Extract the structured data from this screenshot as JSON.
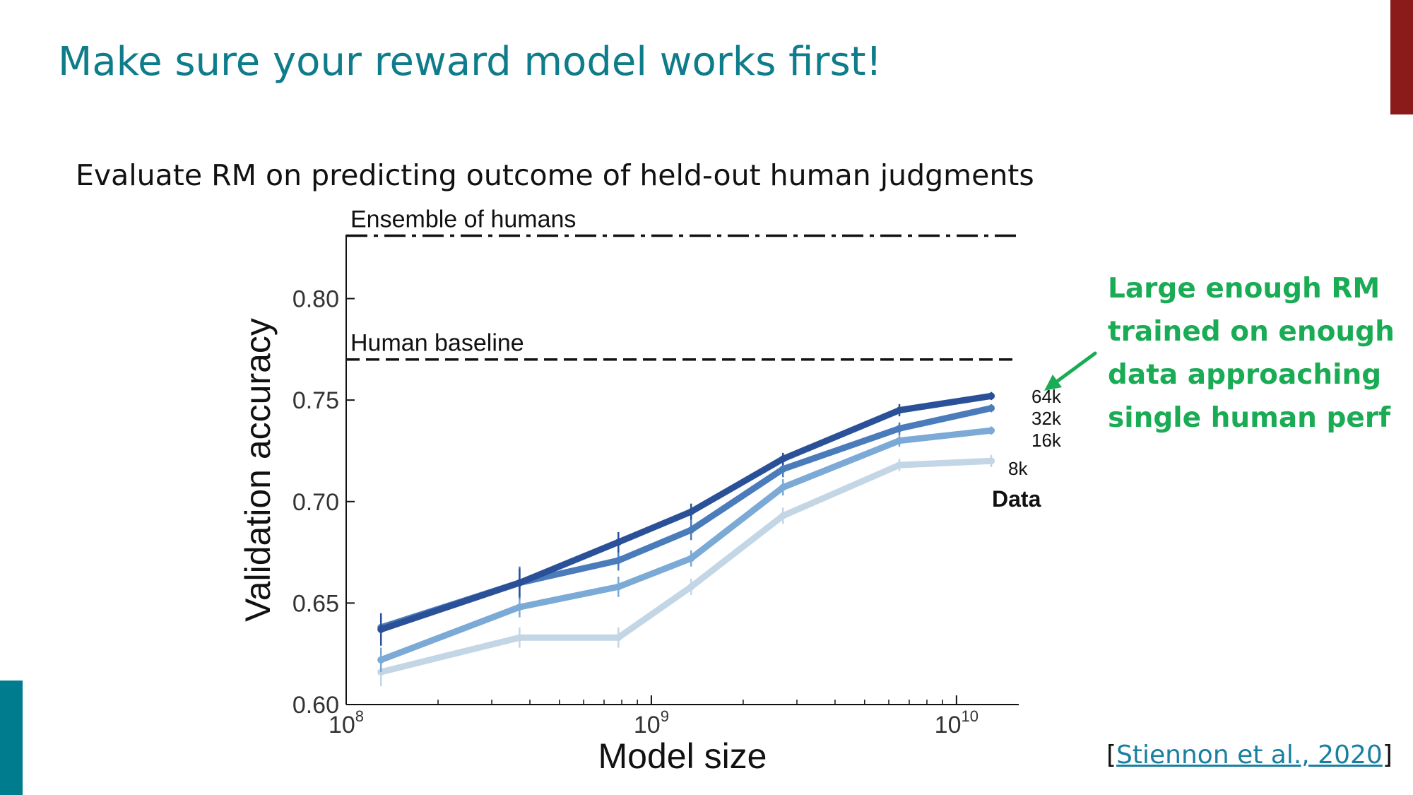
{
  "slide": {
    "title": "Make sure your reward model works first!",
    "subtitle": "Evaluate RM on predicting outcome of held-out human judgments",
    "callout_lines": [
      "Large enough RM",
      "trained on enough",
      "data approaching",
      "single human perf"
    ],
    "citation": {
      "open_bracket": "[",
      "link_text": "Stiennon et al., 2020",
      "close_bracket": "]"
    }
  },
  "colors": {
    "title": "#0e7c8a",
    "callout": "#1aab55",
    "accent_top": "#8b1a1a",
    "accent_bottom": "#007c8f"
  },
  "icons": {
    "callout_arrow": "arrow-icon"
  },
  "chart_data": {
    "type": "line",
    "xlabel": "Model size",
    "ylabel": "Validation accuracy",
    "x_scale": "log",
    "xlim": [
      100000000.0,
      16000000000.0
    ],
    "ylim": [
      0.6,
      0.835
    ],
    "x_ticks": [
      {
        "value": 100000000.0,
        "base": "10",
        "exp": "8"
      },
      {
        "value": 1000000000.0,
        "base": "10",
        "exp": "9"
      },
      {
        "value": 10000000000.0,
        "base": "10",
        "exp": "10"
      }
    ],
    "y_ticks": [
      {
        "value": 0.6,
        "label": "0.60"
      },
      {
        "value": 0.65,
        "label": "0.65"
      },
      {
        "value": 0.7,
        "label": "0.70"
      },
      {
        "value": 0.75,
        "label": "0.75"
      },
      {
        "value": 0.8,
        "label": "0.80"
      }
    ],
    "legend_title": "Data",
    "x": [
      130000000.0,
      370000000.0,
      780000000.0,
      1350000000.0,
      2700000000.0,
      6500000000.0,
      13000000000.0
    ],
    "series": [
      {
        "name": "64k",
        "color": "#2a5198",
        "values": [
          0.637,
          0.66,
          0.68,
          0.695,
          0.721,
          0.745,
          0.752
        ],
        "errors": [
          0.008,
          0.007,
          0.005,
          0.004,
          0.003,
          0.003,
          0.002
        ]
      },
      {
        "name": "32k",
        "color": "#4a7cbc",
        "values": [
          0.638,
          0.66,
          0.671,
          0.686,
          0.716,
          0.736,
          0.746
        ],
        "errors": [
          0.006,
          0.008,
          0.005,
          0.005,
          0.004,
          0.003,
          0.002
        ]
      },
      {
        "name": "16k",
        "color": "#7aaad5",
        "values": [
          0.622,
          0.648,
          0.658,
          0.672,
          0.707,
          0.73,
          0.735
        ],
        "errors": [
          0.006,
          0.005,
          0.005,
          0.004,
          0.004,
          0.003,
          0.002
        ]
      },
      {
        "name": "8k",
        "color": "#c3d6e6",
        "values": [
          0.616,
          0.633,
          0.633,
          0.658,
          0.693,
          0.718,
          0.72
        ],
        "errors": [
          0.007,
          0.005,
          0.005,
          0.004,
          0.004,
          0.003,
          0.003
        ]
      }
    ],
    "reference_lines": [
      {
        "label": "Ensemble of humans",
        "value": 0.831,
        "style": "dash-dot"
      },
      {
        "label": "Human baseline",
        "value": 0.77,
        "style": "dashed"
      }
    ]
  }
}
